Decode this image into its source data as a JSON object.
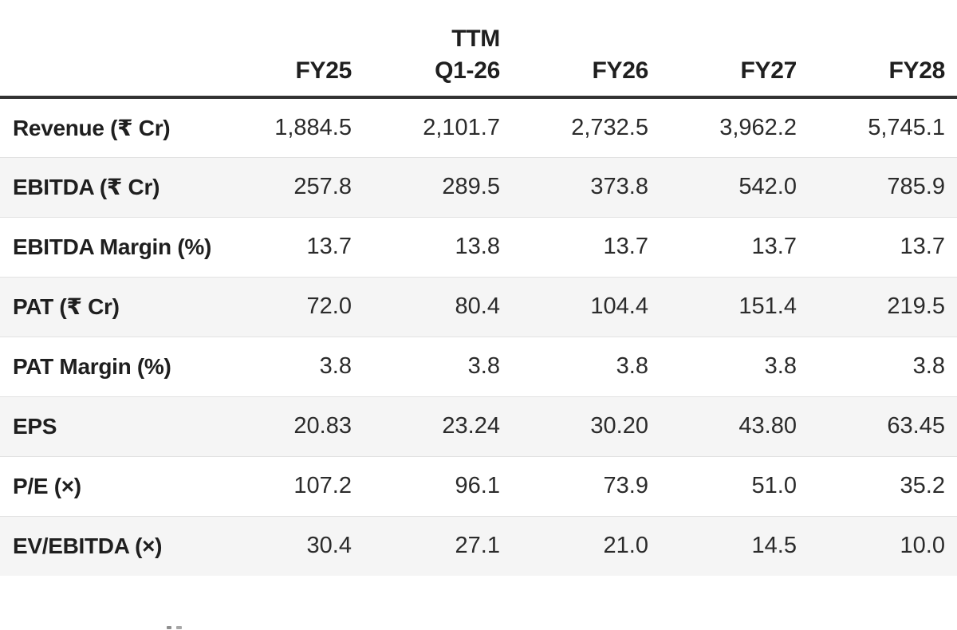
{
  "chart_data": {
    "type": "table",
    "description": "Financial estimates table with actual and projected fiscal-year figures",
    "columns": [
      {
        "top": "",
        "label": "FY25"
      },
      {
        "top": "TTM",
        "label": "Q1-26"
      },
      {
        "top": "",
        "label": "FY26"
      },
      {
        "top": "",
        "label": "FY27"
      },
      {
        "top": "",
        "label": "FY28"
      }
    ],
    "rows": [
      {
        "label": "Revenue (₹ Cr)",
        "values": [
          "1,884.5",
          "2,101.7",
          "2,732.5",
          "3,962.2",
          "5,745.1"
        ]
      },
      {
        "label": "EBITDA (₹ Cr)",
        "values": [
          "257.8",
          "289.5",
          "373.8",
          "542.0",
          "785.9"
        ]
      },
      {
        "label": "EBITDA Margin (%)",
        "values": [
          "13.7",
          "13.8",
          "13.7",
          "13.7",
          "13.7"
        ]
      },
      {
        "label": "PAT (₹ Cr)",
        "values": [
          "72.0",
          "80.4",
          "104.4",
          "151.4",
          "219.5"
        ]
      },
      {
        "label": "PAT Margin (%)",
        "values": [
          "3.8",
          "3.8",
          "3.8",
          "3.8",
          "3.8"
        ]
      },
      {
        "label": "EPS",
        "values": [
          "20.83",
          "23.24",
          "30.20",
          "43.80",
          "63.45"
        ]
      },
      {
        "label": "P/E (×)",
        "values": [
          "107.2",
          "96.1",
          "73.9",
          "51.0",
          "35.2"
        ]
      },
      {
        "label": "EV/EBITDA (×)",
        "values": [
          "30.4",
          "27.1",
          "21.0",
          "14.5",
          "10.0"
        ]
      }
    ]
  },
  "colors": {
    "header_border": "#333333",
    "row_separator": "#e2e2e2",
    "stripe": "#f5f5f5",
    "label_text": "#1f1f1f",
    "value_text": "#2b2b2b"
  }
}
